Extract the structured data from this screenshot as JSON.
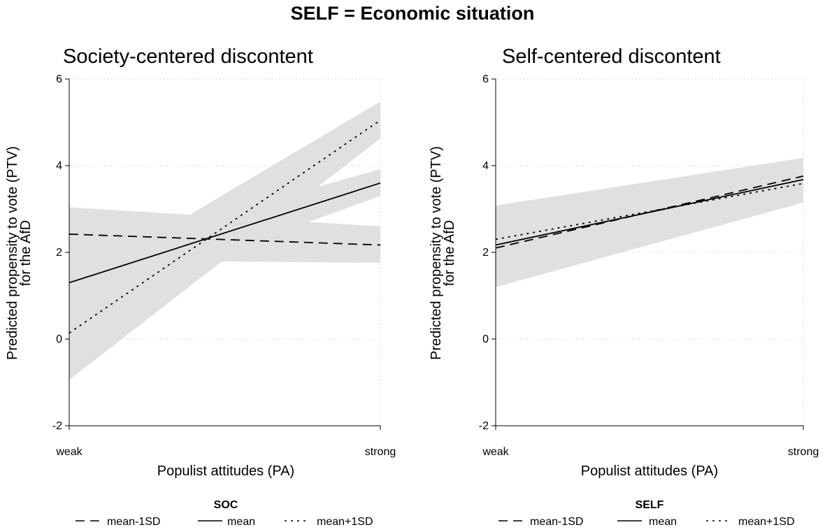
{
  "main_title": "SELF = Economic situation",
  "style": {
    "band_color": "#e0e0e0",
    "line_color": "#000000",
    "grid_color": "#bbbbbb"
  },
  "chart_data": [
    {
      "type": "line",
      "title": "Society-centered discontent",
      "xlabel": "Populist attitudes (PA)",
      "ylabel_lines": [
        "Predicted propensity to vote (PTV)",
        "for the AfD"
      ],
      "x_ticks": [
        "weak",
        "strong"
      ],
      "y_ticks": [
        -2,
        0,
        2,
        4,
        6
      ],
      "ylim": [
        -2,
        6
      ],
      "grid": true,
      "legend": {
        "title": "SOC",
        "position": "bottom",
        "entries": [
          {
            "label": "mean-1SD",
            "dash": "dashed"
          },
          {
            "label": "mean",
            "dash": "solid"
          },
          {
            "label": "mean+1SD",
            "dash": "dotted"
          }
        ]
      },
      "series": [
        {
          "name": "mean-1SD",
          "dash": "dashed",
          "values": [
            2.42,
            2.17
          ],
          "ci_lower": [
            1.82,
            1.76
          ],
          "ci_upper": [
            3.04,
            2.6
          ]
        },
        {
          "name": "mean",
          "dash": "solid",
          "values": [
            1.3,
            3.6
          ],
          "ci_lower": [
            0.71,
            3.3
          ],
          "ci_upper": [
            1.9,
            3.92
          ]
        },
        {
          "name": "mean+1SD",
          "dash": "dotted",
          "values": [
            0.14,
            5.05
          ],
          "ci_lower": [
            -0.94,
            4.63
          ],
          "ci_upper": [
            1.22,
            5.48
          ]
        }
      ]
    },
    {
      "type": "line",
      "title": "Self-centered discontent",
      "xlabel": "Populist attitudes (PA)",
      "ylabel_lines": [
        "Predicted propensity to vote (PTV)",
        "for the AfD"
      ],
      "x_ticks": [
        "weak",
        "strong"
      ],
      "y_ticks": [
        -2,
        0,
        2,
        4,
        6
      ],
      "ylim": [
        -2,
        6
      ],
      "grid": true,
      "legend": {
        "title": "SELF",
        "position": "bottom",
        "entries": [
          {
            "label": "mean-1SD",
            "dash": "dashed"
          },
          {
            "label": "mean",
            "dash": "solid"
          },
          {
            "label": "mean+1SD",
            "dash": "dotted"
          }
        ]
      },
      "series": [
        {
          "name": "mean-1SD",
          "dash": "dashed",
          "values": [
            2.1,
            3.76
          ],
          "ci_lower": [
            1.2,
            3.15
          ],
          "ci_upper": [
            3.08,
            4.18
          ]
        },
        {
          "name": "mean",
          "dash": "solid",
          "values": [
            2.17,
            3.68
          ],
          "ci_lower": [
            1.55,
            3.3
          ],
          "ci_upper": [
            2.8,
            4.02
          ]
        },
        {
          "name": "mean+1SD",
          "dash": "dotted",
          "values": [
            2.3,
            3.59
          ],
          "ci_lower": [
            1.95,
            3.38
          ],
          "ci_upper": [
            2.7,
            3.86
          ]
        }
      ]
    }
  ]
}
